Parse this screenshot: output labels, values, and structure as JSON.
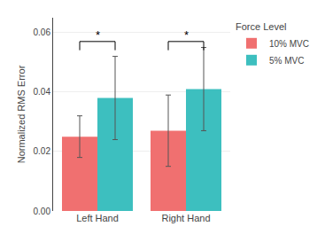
{
  "chart_data": {
    "type": "bar",
    "categories": [
      "Left Hand",
      "Right Hand"
    ],
    "series": [
      {
        "name": "10% MVC",
        "color": "#F07070",
        "values": [
          0.025,
          0.027
        ],
        "errors": [
          0.007,
          0.012
        ]
      },
      {
        "name": "5% MVC",
        "color": "#3DBFBF",
        "values": [
          0.038,
          0.041
        ],
        "errors": [
          0.014,
          0.014
        ]
      }
    ],
    "ylabel": "Normalized RMS Error",
    "ylim": [
      0.0,
      0.065
    ],
    "yticks": [
      {
        "value": 0.0,
        "label": "0.00"
      },
      0.02,
      0.04,
      0.06
    ],
    "legend_title": "Force Level",
    "legend": "upper right",
    "grid": true,
    "significance": [
      {
        "category": "Left Hand",
        "y": 0.057,
        "label": "*"
      },
      {
        "category": "Right Hand",
        "y": 0.057,
        "label": "*"
      }
    ]
  }
}
